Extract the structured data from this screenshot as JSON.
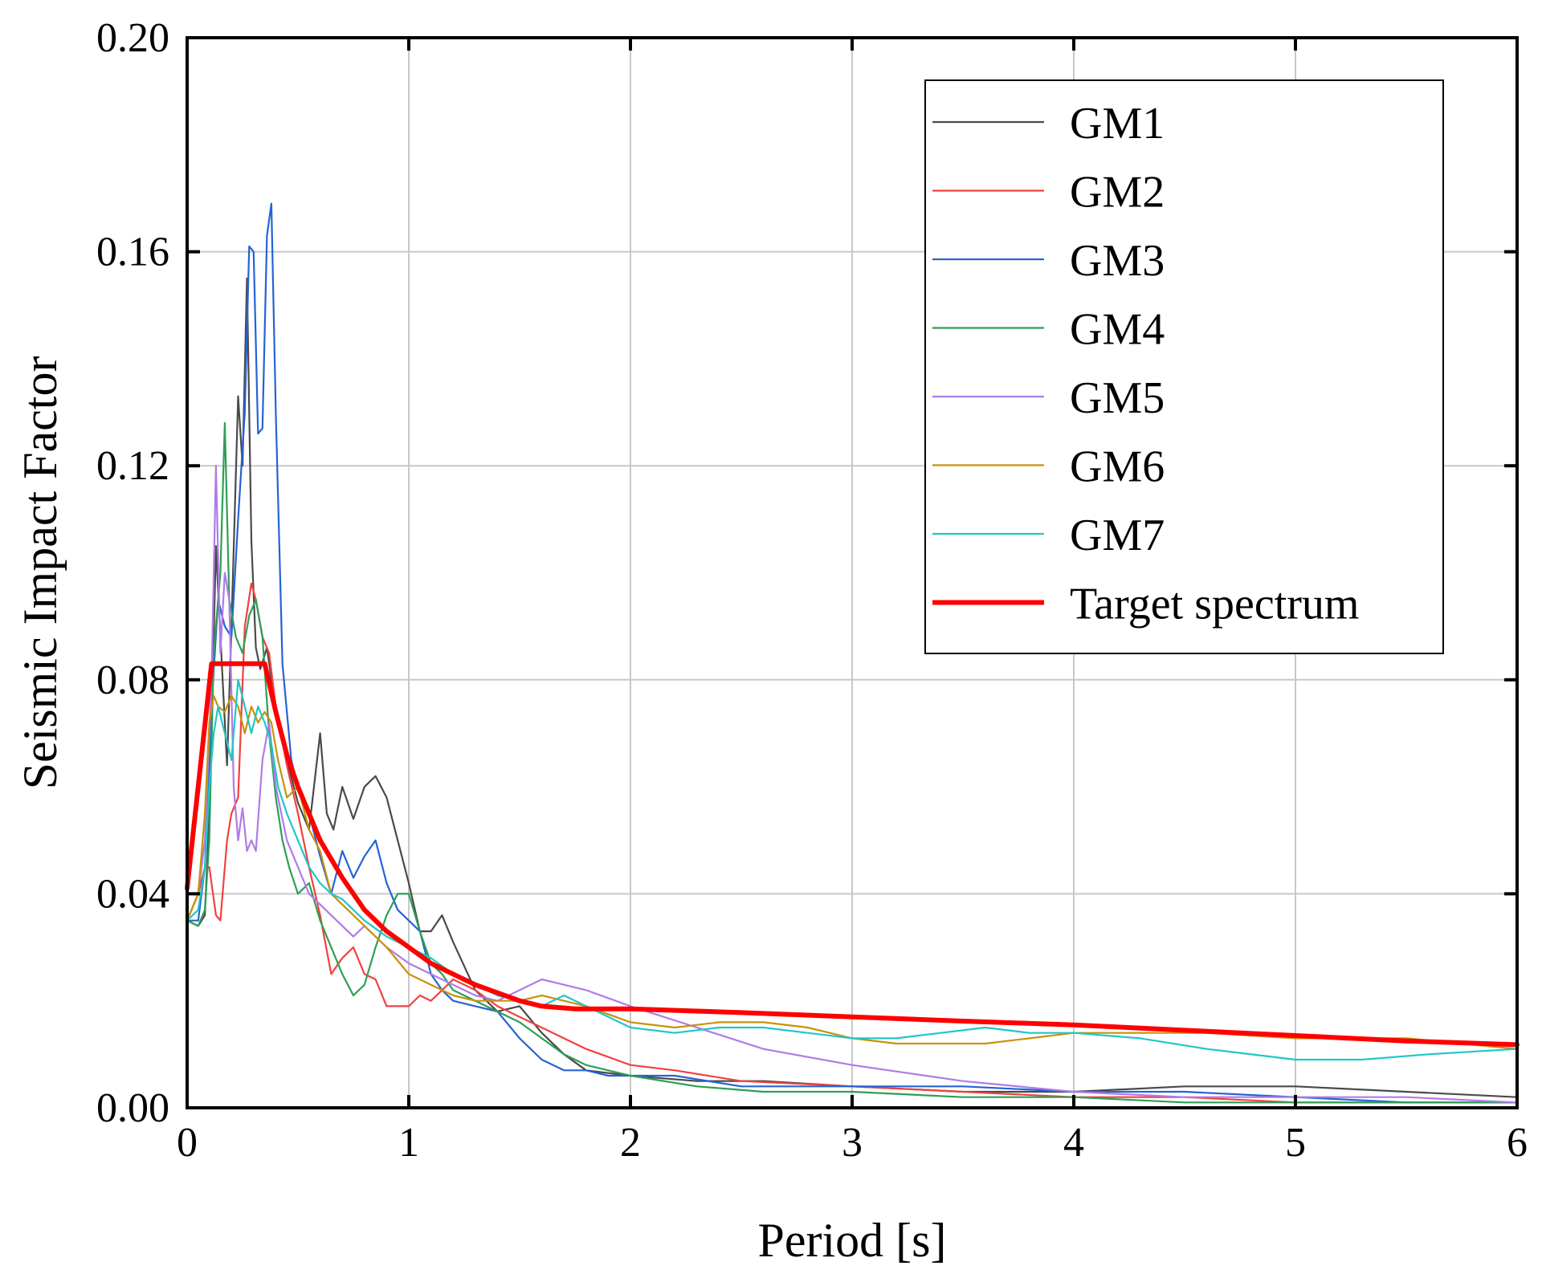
{
  "chart_data": {
    "type": "line",
    "title": "",
    "xlabel": "Period [s]",
    "ylabel": "Seismic Impact Factor",
    "xlim": [
      0,
      6
    ],
    "ylim": [
      0,
      0.2
    ],
    "xticks": [
      0,
      1,
      2,
      3,
      4,
      5,
      6
    ],
    "xtick_labels": [
      "0",
      "1",
      "2",
      "3",
      "4",
      "5",
      "6"
    ],
    "yticks": [
      0,
      0.04,
      0.08,
      0.12,
      0.16,
      0.2
    ],
    "ytick_labels": [
      "0.00",
      "0.04",
      "0.08",
      "0.12",
      "0.16",
      "0.20"
    ],
    "grid": true,
    "legend_position": "top-right",
    "series": [
      {
        "name": "GM1",
        "color": "#4a4a4a",
        "width": 2.2,
        "x": [
          0,
          0.05,
          0.08,
          0.1,
          0.13,
          0.16,
          0.18,
          0.2,
          0.23,
          0.25,
          0.27,
          0.29,
          0.31,
          0.33,
          0.36,
          0.4,
          0.45,
          0.5,
          0.55,
          0.6,
          0.63,
          0.66,
          0.7,
          0.75,
          0.8,
          0.85,
          0.9,
          0.95,
          1.0,
          1.05,
          1.1,
          1.15,
          1.2,
          1.3,
          1.4,
          1.5,
          1.6,
          1.7,
          1.8,
          2.0,
          2.3,
          2.6,
          3.0,
          3.5,
          4.0,
          4.5,
          5.0,
          5.5,
          6.0
        ],
        "y": [
          0.035,
          0.034,
          0.036,
          0.055,
          0.105,
          0.08,
          0.064,
          0.09,
          0.133,
          0.12,
          0.155,
          0.106,
          0.086,
          0.082,
          0.086,
          0.074,
          0.065,
          0.057,
          0.052,
          0.07,
          0.055,
          0.052,
          0.06,
          0.054,
          0.06,
          0.062,
          0.058,
          0.05,
          0.042,
          0.033,
          0.033,
          0.036,
          0.031,
          0.022,
          0.018,
          0.019,
          0.014,
          0.01,
          0.007,
          0.006,
          0.005,
          0.005,
          0.004,
          0.003,
          0.003,
          0.004,
          0.004,
          0.003,
          0.002
        ]
      },
      {
        "name": "GM2",
        "color": "#f24040",
        "width": 2.2,
        "x": [
          0,
          0.05,
          0.08,
          0.1,
          0.13,
          0.15,
          0.18,
          0.2,
          0.23,
          0.26,
          0.29,
          0.31,
          0.34,
          0.37,
          0.4,
          0.45,
          0.5,
          0.55,
          0.6,
          0.65,
          0.7,
          0.75,
          0.8,
          0.85,
          0.9,
          0.95,
          1.0,
          1.05,
          1.1,
          1.15,
          1.2,
          1.3,
          1.4,
          1.5,
          1.6,
          1.8,
          2.0,
          2.2,
          2.5,
          3.0,
          3.5,
          4.0,
          4.5,
          5.0,
          5.5,
          6.0
        ],
        "y": [
          0.035,
          0.04,
          0.045,
          0.045,
          0.036,
          0.035,
          0.05,
          0.055,
          0.058,
          0.09,
          0.098,
          0.095,
          0.088,
          0.085,
          0.075,
          0.064,
          0.055,
          0.045,
          0.036,
          0.025,
          0.028,
          0.03,
          0.025,
          0.024,
          0.019,
          0.019,
          0.019,
          0.021,
          0.02,
          0.022,
          0.024,
          0.022,
          0.019,
          0.017,
          0.015,
          0.011,
          0.008,
          0.007,
          0.005,
          0.004,
          0.003,
          0.002,
          0.002,
          0.001,
          0.001,
          0.001
        ]
      },
      {
        "name": "GM3",
        "color": "#2563d4",
        "width": 2.2,
        "x": [
          0,
          0.05,
          0.08,
          0.11,
          0.14,
          0.17,
          0.2,
          0.23,
          0.26,
          0.28,
          0.3,
          0.32,
          0.34,
          0.36,
          0.38,
          0.4,
          0.43,
          0.47,
          0.5,
          0.55,
          0.6,
          0.65,
          0.7,
          0.75,
          0.8,
          0.85,
          0.9,
          0.95,
          1.0,
          1.05,
          1.1,
          1.15,
          1.2,
          1.3,
          1.4,
          1.5,
          1.6,
          1.7,
          1.8,
          1.9,
          2.0,
          2.2,
          2.5,
          3.0,
          3.5,
          4.0,
          4.5,
          5.0,
          5.5,
          6.0
        ],
        "y": [
          0.035,
          0.035,
          0.045,
          0.075,
          0.095,
          0.09,
          0.088,
          0.11,
          0.13,
          0.161,
          0.16,
          0.126,
          0.127,
          0.163,
          0.169,
          0.13,
          0.083,
          0.065,
          0.06,
          0.055,
          0.047,
          0.04,
          0.048,
          0.043,
          0.047,
          0.05,
          0.042,
          0.037,
          0.035,
          0.033,
          0.025,
          0.022,
          0.02,
          0.019,
          0.018,
          0.013,
          0.009,
          0.007,
          0.007,
          0.006,
          0.006,
          0.006,
          0.004,
          0.004,
          0.004,
          0.003,
          0.003,
          0.002,
          0.001,
          0.001
        ]
      },
      {
        "name": "GM4",
        "color": "#2e9e55",
        "width": 2.2,
        "x": [
          0,
          0.05,
          0.08,
          0.1,
          0.12,
          0.15,
          0.17,
          0.19,
          0.22,
          0.25,
          0.28,
          0.31,
          0.34,
          0.37,
          0.4,
          0.43,
          0.46,
          0.5,
          0.55,
          0.6,
          0.65,
          0.7,
          0.75,
          0.8,
          0.85,
          0.9,
          0.95,
          1.0,
          1.05,
          1.1,
          1.15,
          1.2,
          1.3,
          1.4,
          1.5,
          1.6,
          1.7,
          1.8,
          2.0,
          2.3,
          2.6,
          3.0,
          3.5,
          4.0,
          4.5,
          5.0,
          5.5,
          6.0
        ],
        "y": [
          0.035,
          0.034,
          0.037,
          0.05,
          0.085,
          0.1,
          0.128,
          0.095,
          0.088,
          0.085,
          0.092,
          0.095,
          0.088,
          0.07,
          0.058,
          0.05,
          0.045,
          0.04,
          0.042,
          0.035,
          0.03,
          0.025,
          0.021,
          0.023,
          0.03,
          0.036,
          0.04,
          0.04,
          0.033,
          0.027,
          0.025,
          0.022,
          0.02,
          0.018,
          0.016,
          0.013,
          0.01,
          0.008,
          0.006,
          0.004,
          0.003,
          0.003,
          0.002,
          0.002,
          0.001,
          0.001,
          0.001,
          0.001
        ]
      },
      {
        "name": "GM5",
        "color": "#b07be8",
        "width": 2.2,
        "x": [
          0,
          0.05,
          0.08,
          0.11,
          0.13,
          0.15,
          0.17,
          0.19,
          0.21,
          0.23,
          0.25,
          0.27,
          0.29,
          0.31,
          0.34,
          0.37,
          0.4,
          0.45,
          0.5,
          0.55,
          0.6,
          0.65,
          0.7,
          0.75,
          0.8,
          0.9,
          1.0,
          1.1,
          1.2,
          1.3,
          1.4,
          1.5,
          1.6,
          1.7,
          1.8,
          2.0,
          2.3,
          2.6,
          3.0,
          3.5,
          4.0,
          4.5,
          5.0,
          5.5,
          6.0
        ],
        "y": [
          0.035,
          0.04,
          0.05,
          0.08,
          0.12,
          0.085,
          0.1,
          0.095,
          0.06,
          0.05,
          0.056,
          0.048,
          0.05,
          0.048,
          0.065,
          0.072,
          0.06,
          0.05,
          0.045,
          0.04,
          0.038,
          0.036,
          0.034,
          0.032,
          0.034,
          0.03,
          0.027,
          0.025,
          0.023,
          0.021,
          0.02,
          0.022,
          0.024,
          0.023,
          0.022,
          0.019,
          0.015,
          0.011,
          0.008,
          0.005,
          0.003,
          0.002,
          0.002,
          0.002,
          0.001
        ]
      },
      {
        "name": "GM6",
        "color": "#c8920a",
        "width": 2.2,
        "x": [
          0,
          0.05,
          0.08,
          0.1,
          0.12,
          0.14,
          0.17,
          0.2,
          0.23,
          0.26,
          0.29,
          0.32,
          0.35,
          0.38,
          0.41,
          0.45,
          0.5,
          0.55,
          0.6,
          0.65,
          0.7,
          0.75,
          0.8,
          0.9,
          1.0,
          1.1,
          1.2,
          1.3,
          1.4,
          1.5,
          1.6,
          1.7,
          1.8,
          2.0,
          2.2,
          2.4,
          2.6,
          2.8,
          3.0,
          3.2,
          3.4,
          3.6,
          3.8,
          4.0,
          4.3,
          4.6,
          5.0,
          5.5,
          6.0
        ],
        "y": [
          0.035,
          0.04,
          0.055,
          0.072,
          0.077,
          0.075,
          0.074,
          0.077,
          0.075,
          0.07,
          0.075,
          0.072,
          0.074,
          0.072,
          0.065,
          0.058,
          0.06,
          0.052,
          0.048,
          0.04,
          0.038,
          0.036,
          0.034,
          0.03,
          0.025,
          0.023,
          0.021,
          0.02,
          0.02,
          0.02,
          0.021,
          0.02,
          0.019,
          0.016,
          0.015,
          0.016,
          0.016,
          0.015,
          0.013,
          0.012,
          0.012,
          0.012,
          0.013,
          0.014,
          0.014,
          0.014,
          0.013,
          0.013,
          0.011
        ]
      },
      {
        "name": "GM7",
        "color": "#1fc7c7",
        "width": 2.2,
        "x": [
          0,
          0.05,
          0.08,
          0.1,
          0.12,
          0.14,
          0.17,
          0.2,
          0.23,
          0.26,
          0.29,
          0.32,
          0.35,
          0.38,
          0.41,
          0.45,
          0.5,
          0.55,
          0.6,
          0.65,
          0.7,
          0.75,
          0.8,
          0.9,
          1.0,
          1.1,
          1.2,
          1.3,
          1.4,
          1.5,
          1.6,
          1.7,
          1.8,
          2.0,
          2.2,
          2.4,
          2.6,
          2.8,
          3.0,
          3.2,
          3.4,
          3.6,
          3.8,
          4.0,
          4.3,
          4.6,
          5.0,
          5.3,
          5.6,
          6.0
        ],
        "y": [
          0.035,
          0.037,
          0.045,
          0.06,
          0.07,
          0.075,
          0.07,
          0.065,
          0.08,
          0.075,
          0.07,
          0.075,
          0.072,
          0.068,
          0.06,
          0.055,
          0.05,
          0.045,
          0.042,
          0.04,
          0.039,
          0.037,
          0.035,
          0.032,
          0.03,
          0.028,
          0.025,
          0.023,
          0.021,
          0.02,
          0.019,
          0.021,
          0.019,
          0.015,
          0.014,
          0.015,
          0.015,
          0.014,
          0.013,
          0.013,
          0.014,
          0.015,
          0.014,
          0.014,
          0.013,
          0.011,
          0.009,
          0.009,
          0.01,
          0.011
        ]
      },
      {
        "name": "Target spectrum",
        "color": "#ff0000",
        "width": 6,
        "x": [
          0,
          0.11,
          0.35,
          0.4,
          0.45,
          0.5,
          0.6,
          0.7,
          0.8,
          0.9,
          1.0,
          1.1,
          1.2,
          1.3,
          1.4,
          1.5,
          1.6,
          1.75,
          2.0,
          2.5,
          3.0,
          3.5,
          4.0,
          4.5,
          5.0,
          5.5,
          6.0
        ],
        "y": [
          0.041,
          0.083,
          0.083,
          0.074,
          0.066,
          0.06,
          0.05,
          0.043,
          0.037,
          0.033,
          0.03,
          0.027,
          0.025,
          0.023,
          0.0215,
          0.02,
          0.019,
          0.0185,
          0.0185,
          0.0178,
          0.017,
          0.0162,
          0.0155,
          0.0145,
          0.0135,
          0.0125,
          0.0118
        ]
      }
    ]
  }
}
